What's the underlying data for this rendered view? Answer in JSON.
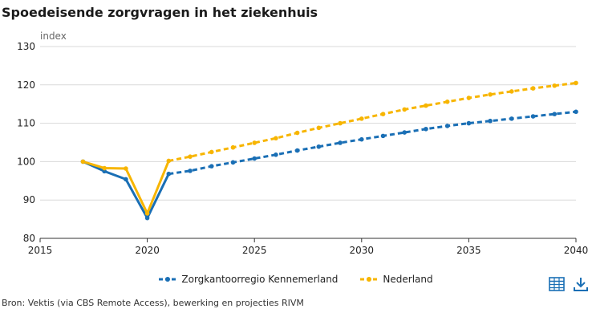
{
  "title": "Spoedeisende zorgvragen in het ziekenhuis",
  "source": "Bron: Vektis (via CBS Remote Access), bewerking en projecties RIVM",
  "icons": [
    "table-icon",
    "download-icon"
  ],
  "colors": {
    "blue": "#1a6fb5",
    "orange": "#f7b500",
    "grid": "#d9d9d9"
  },
  "chart_data": {
    "type": "line",
    "title": "Spoedeisende zorgvragen in het ziekenhuis",
    "ylabel": "index",
    "xlabel": "",
    "xlim": [
      2015,
      2040
    ],
    "ylim": [
      80,
      130
    ],
    "xticks": [
      "2015",
      "2020",
      "2025",
      "2030",
      "2035",
      "2040"
    ],
    "yticks": [
      "80",
      "90",
      "100",
      "110",
      "120",
      "130"
    ],
    "grid": "horizontal",
    "legend_position": "bottom",
    "series": [
      {
        "name": "Zorgkantoorregio Kennemerland",
        "color": "#1a6fb5",
        "style": "solid-then-dashed",
        "x": [
          2017,
          2018,
          2019,
          2020,
          2021,
          2022,
          2023,
          2024,
          2025,
          2026,
          2027,
          2028,
          2029,
          2030,
          2031,
          2032,
          2033,
          2034,
          2035,
          2036,
          2037,
          2038,
          2039,
          2040
        ],
        "y": [
          100.0,
          97.5,
          95.4,
          85.3,
          96.8,
          97.6,
          98.8,
          99.8,
          100.8,
          101.8,
          102.9,
          103.9,
          104.9,
          105.8,
          106.7,
          107.6,
          108.5,
          109.3,
          110.0,
          110.6,
          111.2,
          111.8,
          112.4,
          113.0
        ],
        "projection_from": 2021
      },
      {
        "name": "Nederland",
        "color": "#f7b500",
        "style": "solid-then-dashed",
        "x": [
          2017,
          2018,
          2019,
          2020,
          2021,
          2022,
          2023,
          2024,
          2025,
          2026,
          2027,
          2028,
          2029,
          2030,
          2031,
          2032,
          2033,
          2034,
          2035,
          2036,
          2037,
          2038,
          2039,
          2040
        ],
        "y": [
          100.0,
          98.3,
          98.2,
          86.5,
          100.2,
          101.3,
          102.5,
          103.7,
          104.9,
          106.1,
          107.5,
          108.8,
          110.0,
          111.2,
          112.4,
          113.6,
          114.6,
          115.6,
          116.6,
          117.5,
          118.3,
          119.1,
          119.8,
          120.5
        ],
        "projection_from": 2021
      }
    ]
  }
}
